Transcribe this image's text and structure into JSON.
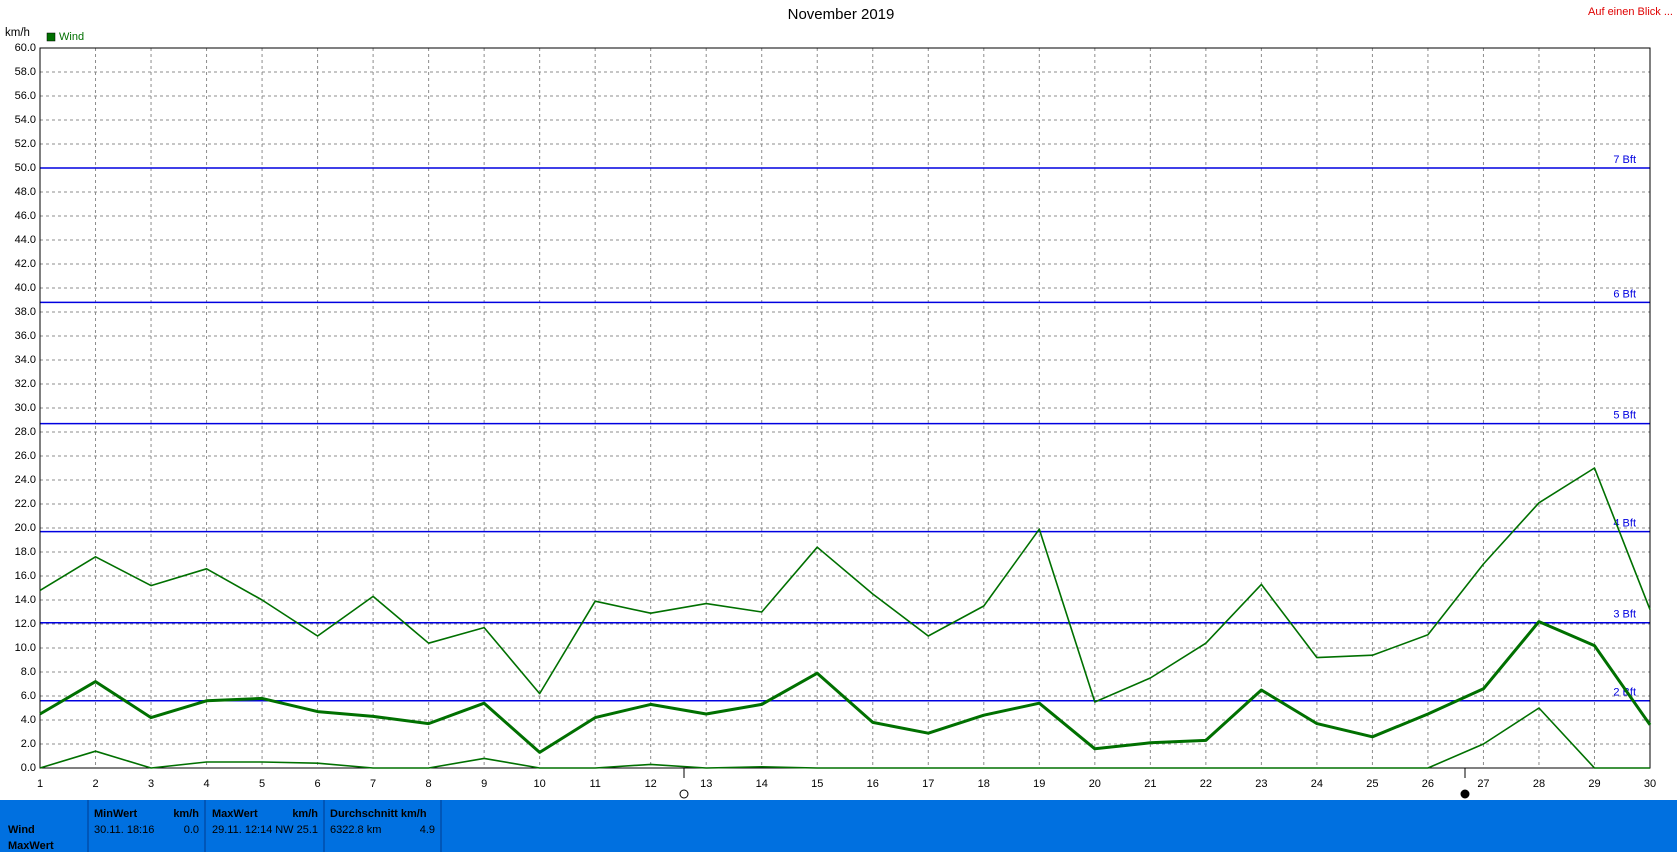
{
  "chart_data": {
    "type": "line",
    "title": "November 2019",
    "y_label": "km/h",
    "link": "Auf einen Blick ...",
    "categories": [
      "1",
      "2",
      "3",
      "4",
      "5",
      "6",
      "7",
      "8",
      "9",
      "10",
      "11",
      "12",
      "13",
      "14",
      "15",
      "16",
      "17",
      "18",
      "19",
      "20",
      "21",
      "22",
      "23",
      "24",
      "25",
      "26",
      "27",
      "28",
      "29",
      "30"
    ],
    "series": [
      {
        "name": "Wind",
        "color": "#007000",
        "width": 1.6,
        "values": [
          14.8,
          17.6,
          15.2,
          16.6,
          14.0,
          11.0,
          14.3,
          10.4,
          11.7,
          6.2,
          13.9,
          12.9,
          13.7,
          13.0,
          18.4,
          14.5,
          11.0,
          13.5,
          19.9,
          5.5,
          7.5,
          10.4,
          15.3,
          9.2,
          9.4,
          11.1,
          17.0,
          22.1,
          25.0,
          13.2
        ]
      },
      {
        "color": "#007000",
        "width": 3,
        "values": [
          4.5,
          7.2,
          4.2,
          5.6,
          5.8,
          4.7,
          4.3,
          3.7,
          5.4,
          1.3,
          4.2,
          5.3,
          4.5,
          5.3,
          7.9,
          3.8,
          2.9,
          4.4,
          5.4,
          1.6,
          2.1,
          2.3,
          6.5,
          3.7,
          2.6,
          4.5,
          6.6,
          12.2,
          10.2,
          3.6
        ]
      },
      {
        "color": "#007000",
        "width": 1.6,
        "values": [
          0,
          1.4,
          0,
          0.5,
          0.5,
          0.4,
          0,
          0,
          0.8,
          0,
          0,
          0.3,
          0,
          0.1,
          0,
          0,
          0,
          0,
          0,
          0,
          0,
          0,
          0,
          0,
          0,
          0,
          2.0,
          5.0,
          0,
          0
        ]
      }
    ],
    "ref_lines": [
      {
        "value": 50.0,
        "label": "7 Bft"
      },
      {
        "value": 38.8,
        "label": "6 Bft"
      },
      {
        "value": 28.7,
        "label": "5 Bft"
      },
      {
        "value": 19.7,
        "label": "4 Bft"
      },
      {
        "value": 12.1,
        "label": "3 Bft"
      },
      {
        "value": 5.6,
        "label": "2 Bft"
      }
    ],
    "ref_color": "#0000e0",
    "ylim": [
      0,
      60
    ],
    "yticks": [
      {
        "value": 0,
        "label": "0.0"
      },
      {
        "value": 2,
        "label": "2.0"
      },
      {
        "value": 4,
        "label": "4.0"
      },
      {
        "value": 6,
        "label": "6.0"
      },
      {
        "value": 8,
        "label": "8.0"
      },
      {
        "value": 10,
        "label": "10.0"
      },
      {
        "value": 12,
        "label": "12.0"
      },
      {
        "value": 14,
        "label": "14.0"
      },
      {
        "value": 16,
        "label": "16.0"
      },
      {
        "value": 18,
        "label": "18.0"
      },
      {
        "value": 20,
        "label": "20.0"
      },
      {
        "value": 22,
        "label": "22.0"
      },
      {
        "value": 24,
        "label": "24.0"
      },
      {
        "value": 26,
        "label": "26.0"
      },
      {
        "value": 28,
        "label": "28.0"
      },
      {
        "value": 30,
        "label": "30.0"
      },
      {
        "value": 32,
        "label": "32.0"
      },
      {
        "value": 34,
        "label": "34.0"
      },
      {
        "value": 36,
        "label": "36.0"
      },
      {
        "value": 38,
        "label": "38.0"
      },
      {
        "value": 40,
        "label": "40.0"
      },
      {
        "value": 42,
        "label": "42.0"
      },
      {
        "value": 44,
        "label": "44.0"
      },
      {
        "value": 46,
        "label": "46.0"
      },
      {
        "value": 48,
        "label": "48.0"
      },
      {
        "value": 50,
        "label": "50.0"
      },
      {
        "value": 52,
        "label": "52.0"
      },
      {
        "value": 54,
        "label": "54.0"
      },
      {
        "value": 56,
        "label": "56.0"
      },
      {
        "value": 58,
        "label": "58.0"
      },
      {
        "value": 60,
        "label": "60.0"
      }
    ],
    "grid": true
  },
  "summary": {
    "row_labels": [
      "Wind",
      "MaxWert"
    ],
    "min": {
      "header": "MinWert",
      "unit": "km/h",
      "time": "30.11. 18:16",
      "value": "0.0"
    },
    "max": {
      "header": "MaxWert",
      "unit": "km/h",
      "time": "29.11. 12:14",
      "value": "NW 25.1"
    },
    "avg": {
      "header": "Durchschnitt km/h",
      "total": "6322.8 km",
      "value": "4.9"
    }
  }
}
